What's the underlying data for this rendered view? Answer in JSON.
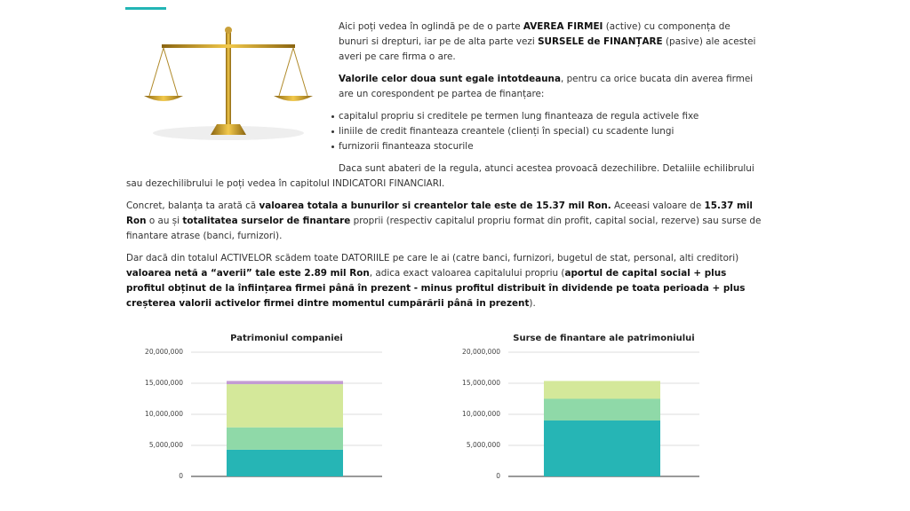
{
  "paragraphs_top": [
    [
      "Aici poți vedea în oglindă pe de o parte ",
      {
        "text": "AVEREA FIRMEI",
        "bold": true
      },
      " (active) cu componența de bunuri si drepturi, iar pe de alta parte vezi ",
      {
        "text": "SURSELE de FINANȚARE",
        "bold": true
      },
      " (pasive) ale acestei averi pe care firma o are."
    ],
    [
      {
        "text": "Valorile celor doua sunt egale intotdeauna",
        "bold": true
      },
      ", pentru ca orice bucata din averea firmei are un corespondent pe partea de finanțare:"
    ]
  ],
  "list": [
    "capitalul propriu si creditele pe termen lung finanteaza de regula activele fixe",
    "liniile de credit finanteaza creantele (clienți în special) cu scadente lungi",
    "furnizorii finanteaza stocurile"
  ],
  "paragraphs_bottom": [
    [
      "Daca sunt abateri de la regula, atunci acestea provoacă dezechilibre. Detaliile echilibrului sau dezechilibrului le poți vedea în capitolul INDICATORI FINANCIARI."
    ],
    [
      "Concret, balanța ta arată că ",
      {
        "text": "valoarea totala a bunurilor si creantelor tale este de 15.37 mil Ron.",
        "bold": true
      },
      " Aceeasi valoare de ",
      {
        "text": "15.37 mil Ron",
        "bold": true
      },
      " o au și ",
      {
        "text": "totalitatea surselor de finantare",
        "bold": true
      },
      " proprii (respectiv capitalul propriu format din profit, capital social, rezerve) sau surse de finantare atrase (banci, furnizori)."
    ],
    [
      "Dar dacă din totalul ACTIVELOR scădem toate DATORIILE pe care le ai (catre banci, furnizori, bugetul de stat, personal, alti creditori) ",
      {
        "text": "valoarea netă a “averii” tale este 2.89 mil Ron",
        "bold": true
      },
      ", adica exact valoarea capitalului propriu (",
      {
        "text": "aportul de capital social + plus profitul obținut de la înființarea firmei până în prezent - minus profitul distribuit în dividende pe toata perioada + plus creșterea valorii activelor firmei dintre momentul cumpărării până in prezent",
        "bold": true
      },
      ")."
    ]
  ],
  "chart_data": [
    {
      "type": "stacked_bar",
      "title": "Patrimoniul companiei",
      "series": [
        {
          "color": "#26b5b5",
          "values": [
            4300000
          ]
        },
        {
          "color": "#8fd9a8",
          "values": [
            3600000
          ]
        },
        {
          "color": "#d4e89a",
          "values": [
            6950000
          ]
        },
        {
          "color": "#c39bd3",
          "values": [
            520000
          ]
        }
      ],
      "ylim": [
        0,
        20000000
      ],
      "yticks": [
        0,
        {
          "value": 5000000,
          "label": "5,000,000"
        },
        {
          "value": 10000000,
          "label": "10,000,000"
        },
        {
          "value": 15000000,
          "label": "15,000,000"
        },
        {
          "value": 20000000,
          "label": "20,000,000"
        }
      ],
      "grid": true
    },
    {
      "type": "stacked_bar",
      "title": "Surse de finantare ale patrimoniului",
      "series": [
        {
          "color": "#26b5b5",
          "values": [
            9000000
          ]
        },
        {
          "color": "#8fd9a8",
          "values": [
            3500000
          ]
        },
        {
          "color": "#d4e89a",
          "values": [
            2870000
          ]
        }
      ],
      "ylim": [
        0,
        20000000
      ],
      "yticks": [
        0,
        {
          "value": 5000000,
          "label": "5,000,000"
        },
        {
          "value": 10000000,
          "label": "10,000,000"
        },
        {
          "value": 15000000,
          "label": "15,000,000"
        },
        {
          "value": 20000000,
          "label": "20,000,000"
        }
      ],
      "grid": true
    }
  ]
}
